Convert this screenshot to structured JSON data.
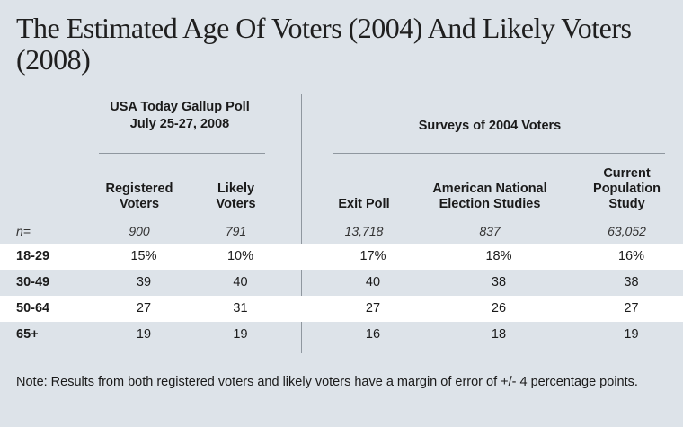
{
  "title": "The Estimated Age Of Voters (2004) And Likely Voters (2008)",
  "groups": {
    "gallup": {
      "line1": "USA Today Gallup Poll",
      "line2": "July 25-27, 2008"
    },
    "surveys": {
      "label": "Surveys of 2004 Voters"
    }
  },
  "columns": [
    {
      "line1": "Registered",
      "line2": "Voters",
      "line3": ""
    },
    {
      "line1": "Likely",
      "line2": "Voters",
      "line3": ""
    },
    {
      "line1": "Exit Poll",
      "line2": "",
      "line3": ""
    },
    {
      "line1": "American National",
      "line2": "Election Studies",
      "line3": ""
    },
    {
      "line1": "Current",
      "line2": "Population",
      "line3": "Study"
    }
  ],
  "n_row": {
    "label": "n=",
    "values": [
      "900",
      "791",
      "13,718",
      "837",
      "63,052"
    ]
  },
  "rows": [
    {
      "label": "18-29",
      "values": [
        "15%",
        "10%",
        "17%",
        "18%",
        "16%"
      ]
    },
    {
      "label": "30-49",
      "values": [
        "39",
        "40",
        "40",
        "38",
        "38"
      ]
    },
    {
      "label": "50-64",
      "values": [
        "27",
        "31",
        "27",
        "26",
        "27"
      ]
    },
    {
      "label": "65+",
      "values": [
        "19",
        "19",
        "16",
        "18",
        "19"
      ]
    }
  ],
  "note": "Note: Results from both registered voters and likely voters have a margin of error of +/- 4 percentage points."
}
